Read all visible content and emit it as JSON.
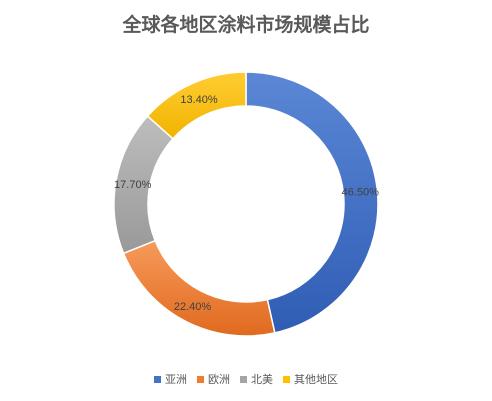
{
  "chart_data": {
    "type": "pie",
    "title": "全球各地区涂料市场规模占比",
    "categories": [
      "亚洲",
      "欧洲",
      "北美",
      "其他地区"
    ],
    "values": [
      46.5,
      22.4,
      17.7,
      13.4
    ],
    "value_labels": [
      "46.50%",
      "22.40%",
      "17.70%",
      "13.40%"
    ],
    "colors": [
      "#4472C4",
      "#ED7D31",
      "#A5A5A5",
      "#FFC000"
    ],
    "donut": true,
    "legend": "bottom"
  }
}
